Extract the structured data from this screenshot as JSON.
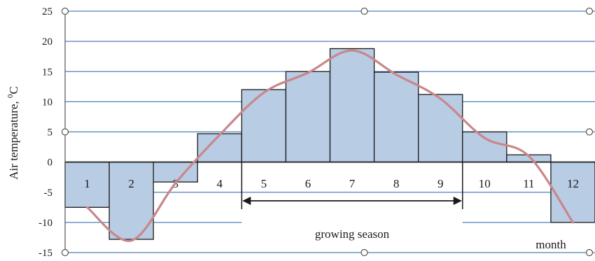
{
  "chart_data": {
    "type": "bar",
    "categories": [
      "1",
      "2",
      "3",
      "4",
      "5",
      "6",
      "7",
      "8",
      "9",
      "10",
      "11",
      "12"
    ],
    "series": [
      {
        "values": [
          -7.5,
          -12.8,
          -3.3,
          4.7,
          12.0,
          15.0,
          18.8,
          14.9,
          11.2,
          5.0,
          1.2,
          -10.0
        ]
      }
    ],
    "curve_values": [
      -7.5,
      -13.0,
      -3.5,
      4.5,
      11.5,
      14.8,
      18.5,
      14.5,
      10.5,
      4.0,
      1.0,
      -10.0
    ],
    "ylabel_main": "Air temperature, ",
    "ylabel_sup": "0",
    "ylabel_unit": "C",
    "ylim": [
      -15,
      25
    ],
    "yticks": [
      -15,
      -10,
      -5,
      0,
      5,
      10,
      15,
      20,
      25
    ],
    "grid": true,
    "annotations": {
      "span_label": "growing season",
      "span_from": "5",
      "span_to": "9",
      "axis_note": "month"
    },
    "colors": {
      "bar_fill": "#b8cce4",
      "bar_stroke": "#1a1a1a",
      "curve": "#c9878a",
      "grid": "#4f81bd",
      "axis": "#555555"
    }
  }
}
